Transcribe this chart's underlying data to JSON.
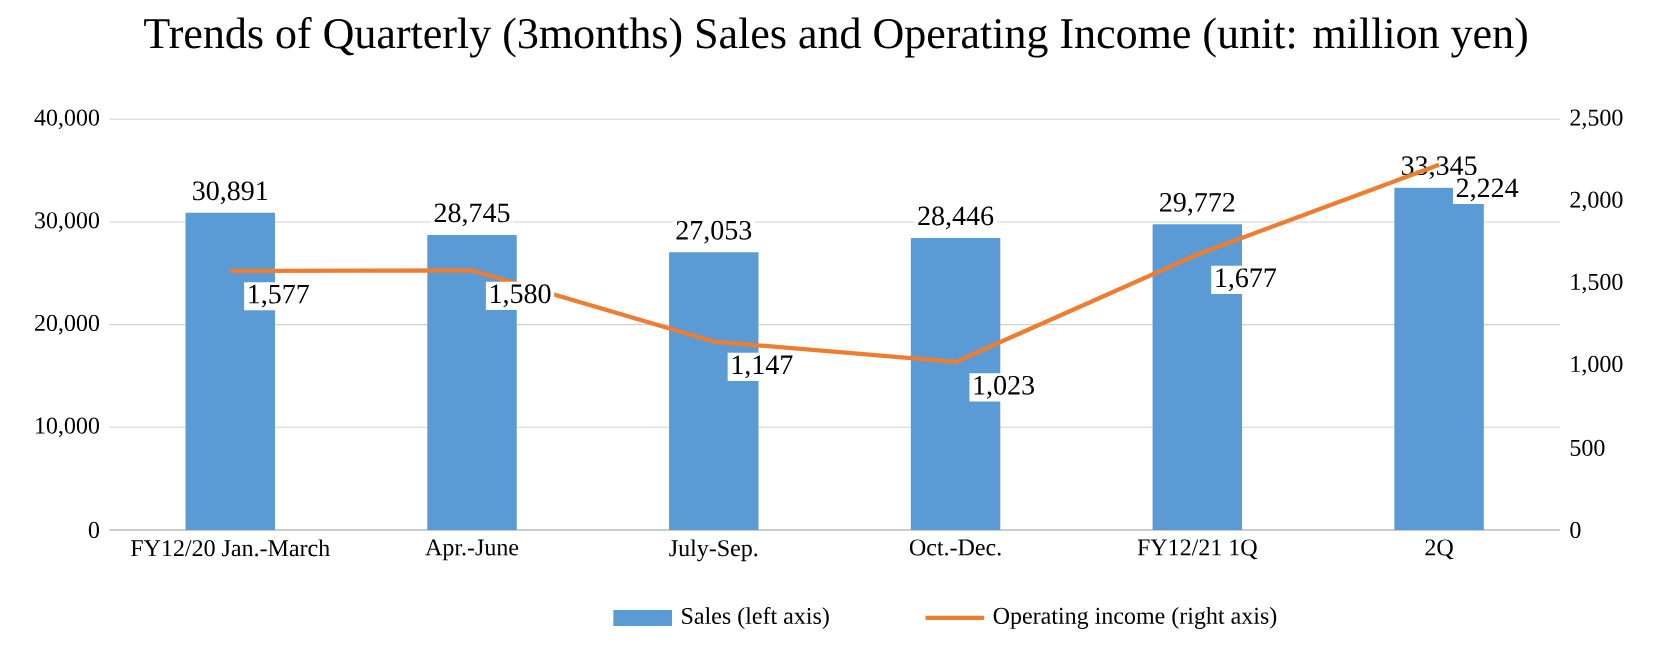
{
  "chart_data": {
    "type": "bar",
    "title": "Trends of Quarterly (3months) Sales and Operating Income (unit: million yen)",
    "categories": [
      "FY12/20 Jan.-March",
      "Apr.-June",
      "July-Sep.",
      "Oct.-Dec.",
      "FY12/21 1Q",
      "2Q"
    ],
    "series": [
      {
        "name": "Sales (left axis)",
        "color": "#5b9bd5",
        "values": [
          30891,
          28745,
          27053,
          28446,
          29772,
          33345
        ],
        "value_labels": [
          "30,891",
          "28,745",
          "27,053",
          "28,446",
          "29,772",
          "33,345"
        ]
      },
      {
        "name": "Operating income (right axis)",
        "type": "line",
        "axis": "y2",
        "color": "#ed7d31",
        "values": [
          1577,
          1580,
          1147,
          1023,
          1677,
          2224
        ],
        "value_labels": [
          "1,577",
          "1,580",
          "1,147",
          "1,023",
          "1,677",
          "2,224"
        ]
      }
    ],
    "ylim": [
      0,
      40000
    ],
    "yticks": [
      0,
      {
        "value": 10000,
        "label": "10,000"
      },
      {
        "value": 20000,
        "label": "20,000"
      },
      {
        "value": 30000,
        "label": "30,000"
      },
      {
        "value": 40000,
        "label": "40,000"
      }
    ],
    "y2lim": [
      0,
      2500
    ],
    "y2ticks": [
      0,
      500,
      {
        "value": 1000,
        "label": "1,000"
      },
      {
        "value": 1500,
        "label": "1,500"
      },
      {
        "value": 2000,
        "label": "2,000"
      },
      {
        "value": 2500,
        "label": "2,500"
      }
    ],
    "grid": "y",
    "legend": "bottom",
    "marker": "none",
    "line_style": "solid"
  }
}
